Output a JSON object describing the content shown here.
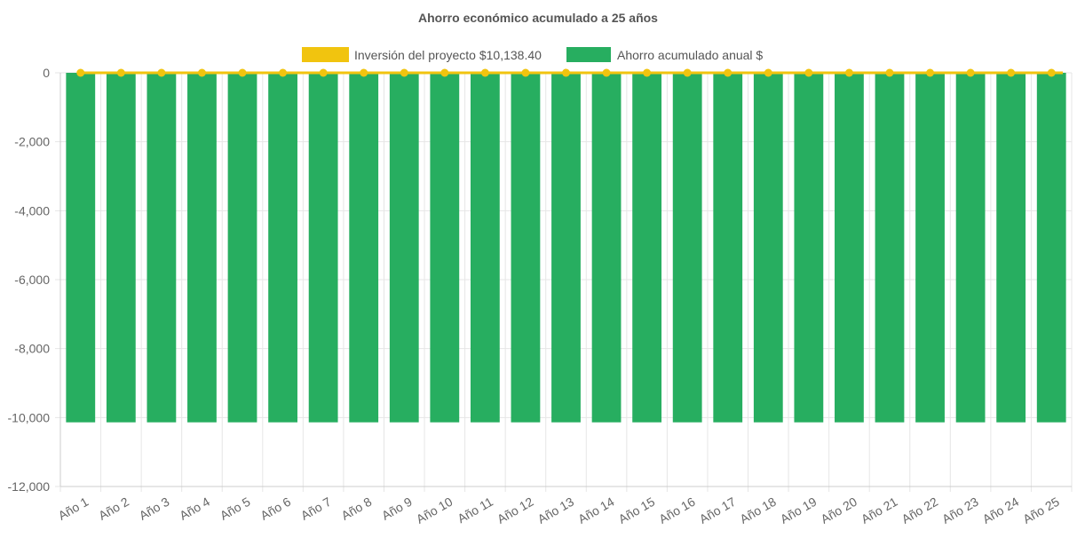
{
  "chart_data": {
    "type": "bar",
    "title": "Ahorro económico acumulado a 25 años",
    "categories": [
      "Año 1",
      "Año 2",
      "Año 3",
      "Año 4",
      "Año 5",
      "Año 6",
      "Año 7",
      "Año 8",
      "Año 9",
      "Año 10",
      "Año 11",
      "Año 12",
      "Año 13",
      "Año 14",
      "Año 15",
      "Año 16",
      "Año 17",
      "Año 18",
      "Año 19",
      "Año 20",
      "Año 21",
      "Año 22",
      "Año 23",
      "Año 24",
      "Año 25"
    ],
    "series": [
      {
        "name": "Inversión del proyecto $10,138.40",
        "type": "line",
        "color": "#f1c40f",
        "values": [
          0,
          0,
          0,
          0,
          0,
          0,
          0,
          0,
          0,
          0,
          0,
          0,
          0,
          0,
          0,
          0,
          0,
          0,
          0,
          0,
          0,
          0,
          0,
          0,
          0
        ]
      },
      {
        "name": "Ahorro acumulado anual $",
        "type": "bar",
        "color": "#27ae60",
        "values": [
          -10138.4,
          -10138.4,
          -10138.4,
          -10138.4,
          -10138.4,
          -10138.4,
          -10138.4,
          -10138.4,
          -10138.4,
          -10138.4,
          -10138.4,
          -10138.4,
          -10138.4,
          -10138.4,
          -10138.4,
          -10138.4,
          -10138.4,
          -10138.4,
          -10138.4,
          -10138.4,
          -10138.4,
          -10138.4,
          -10138.4,
          -10138.4,
          -10138.4
        ]
      }
    ],
    "yticks": [
      "0",
      "-2,000",
      "-4,000",
      "-6,000",
      "-8,000",
      "-10,000",
      "-12,000"
    ],
    "ytick_values": [
      0,
      -2000,
      -4000,
      -6000,
      -8000,
      -10000,
      -12000
    ],
    "ylim": [
      -12000,
      0
    ],
    "xlabel": "",
    "ylabel": "",
    "grid": true,
    "legend_position": "top-center"
  }
}
